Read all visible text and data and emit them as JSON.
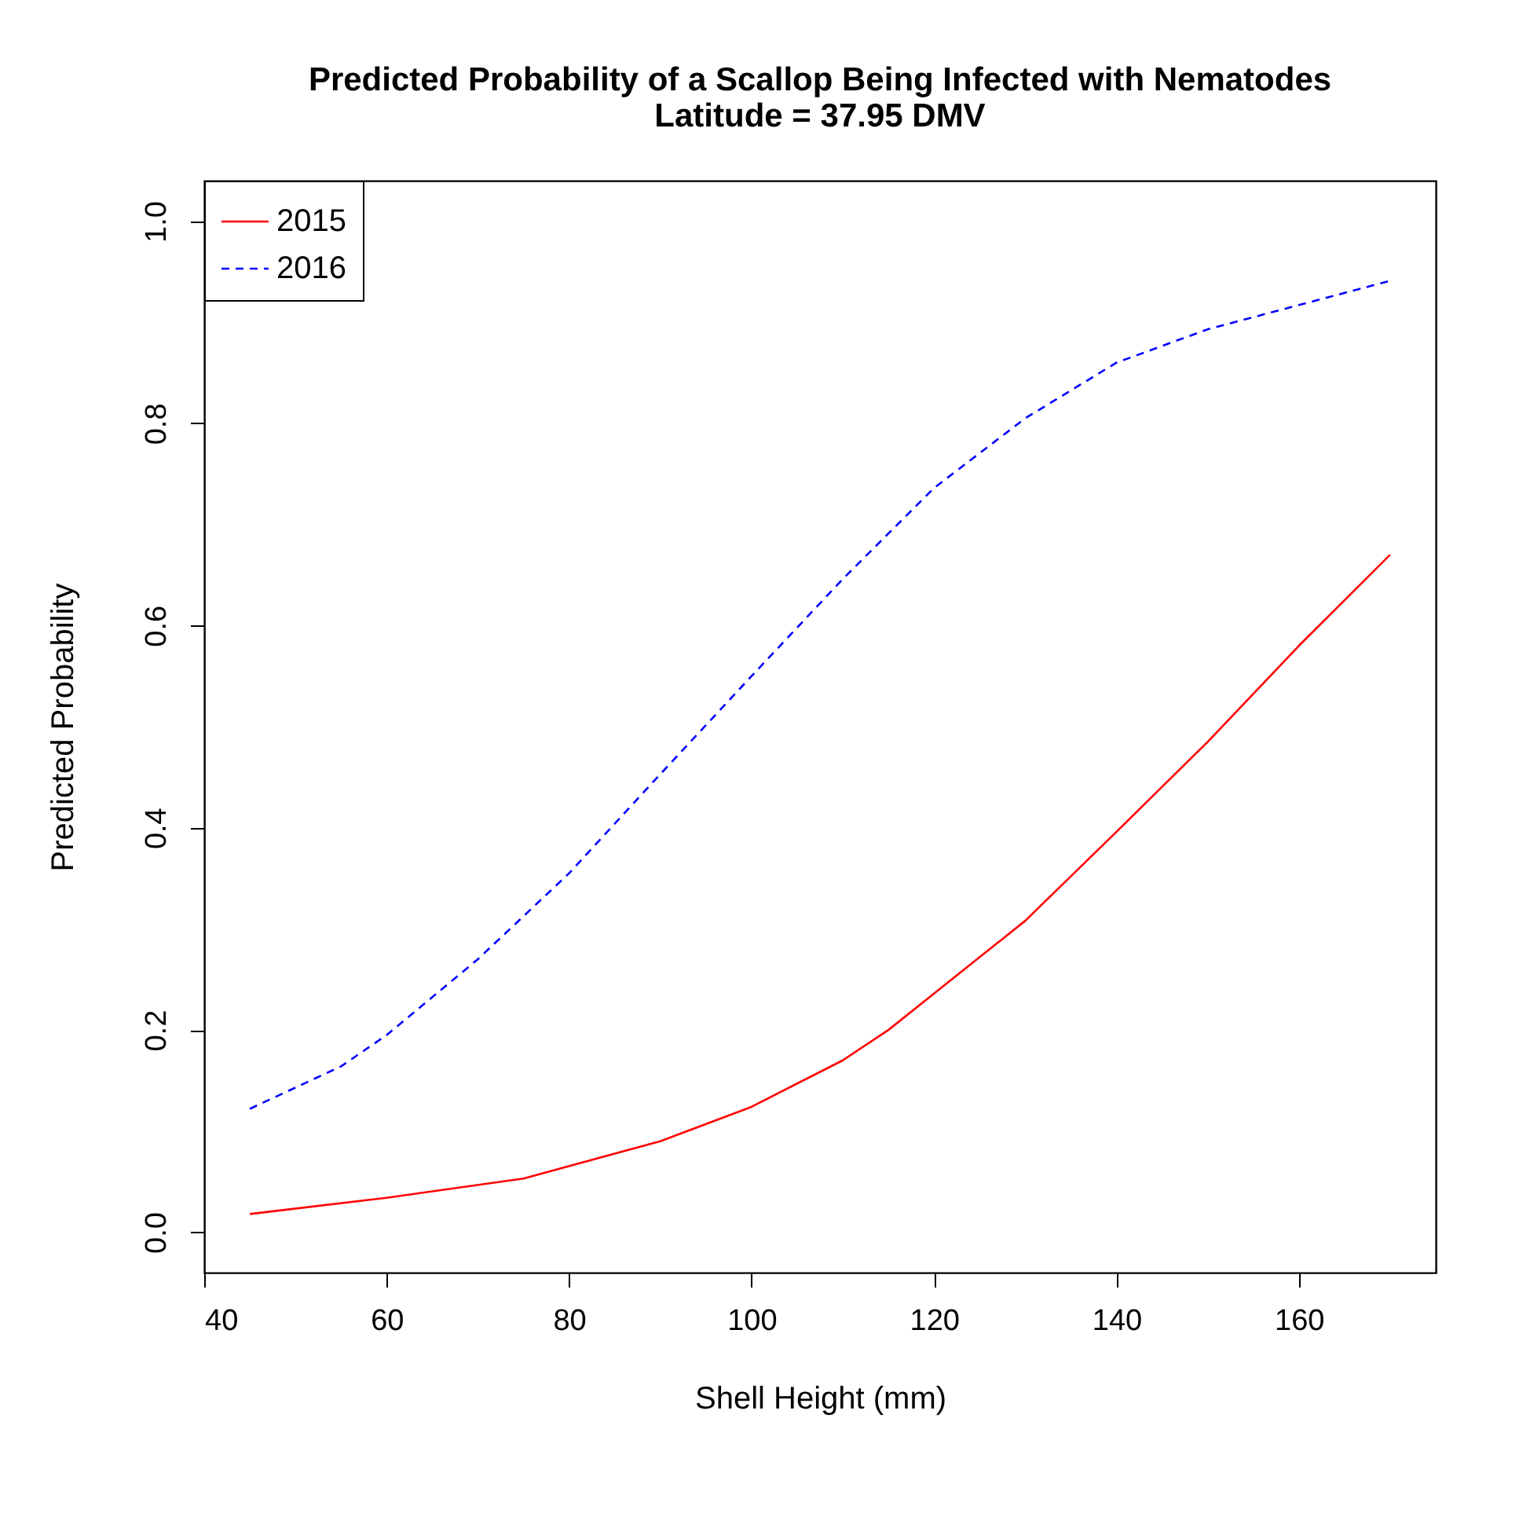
{
  "chart_data": {
    "type": "line",
    "title": "Predicted Probability of a Scallop Being Infected with Nematodes",
    "subtitle": "Latitude = 37.95 DMV",
    "xlabel": "Shell Height (mm)",
    "ylabel": "Predicted Probability",
    "x": [
      45,
      60,
      75,
      90,
      100,
      110,
      115,
      120,
      130,
      140,
      150,
      160,
      170
    ],
    "series": [
      {
        "name": "2015",
        "color": "#ff0000",
        "line_style": "solid",
        "values": [
          0.018,
          0.034,
          0.053,
          0.09,
          0.124,
          0.17,
          0.2,
          0.236,
          0.308,
          0.396,
          0.485,
          0.58,
          0.67
        ]
      },
      {
        "name": "2016",
        "color": "#0000ff",
        "line_style": "dashed",
        "x": [
          45,
          55,
          60,
          70,
          80,
          90,
          100,
          110,
          120,
          130,
          140,
          150,
          160,
          170
        ],
        "values": [
          0.122,
          0.164,
          0.195,
          0.27,
          0.355,
          0.453,
          0.55,
          0.646,
          0.736,
          0.805,
          0.86,
          0.893,
          0.917,
          0.941
        ]
      }
    ],
    "xlim": [
      40,
      175
    ],
    "xticks": [
      40,
      60,
      80,
      100,
      120,
      140,
      160
    ],
    "ylim": [
      -0.04,
      1.04
    ],
    "yticks": [
      {
        "value": 0,
        "label": "0.0"
      },
      {
        "value": 0.2,
        "label": "0.2"
      },
      {
        "value": 0.4,
        "label": "0.4"
      },
      {
        "value": 0.6,
        "label": "0.6"
      },
      {
        "value": 0.8,
        "label": "0.8"
      },
      {
        "value": 1,
        "label": "1.0"
      }
    ],
    "grid": false,
    "legend": "top left",
    "marker": "none"
  }
}
